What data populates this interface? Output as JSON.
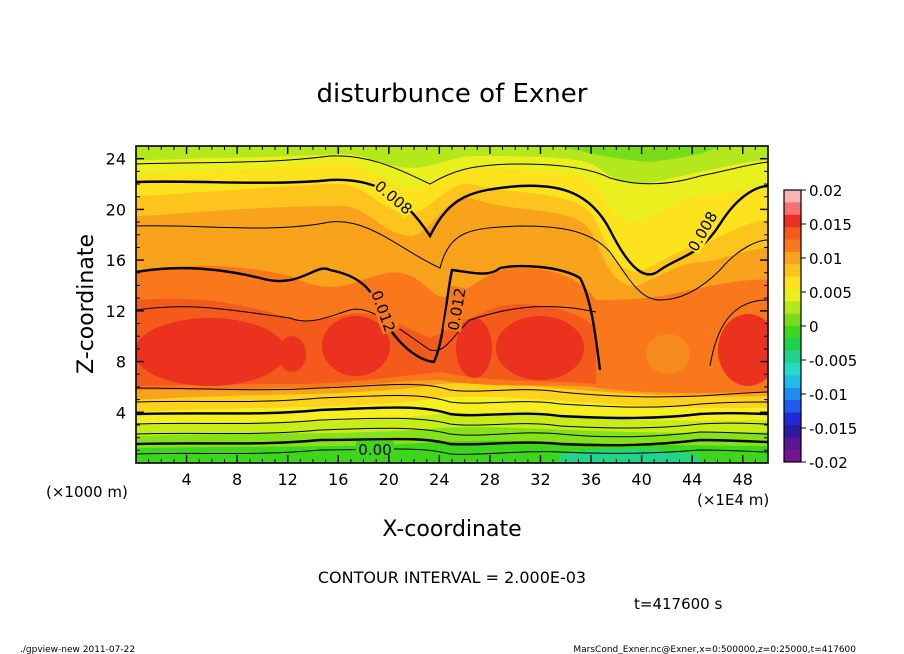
{
  "chart_data": {
    "type": "heatmap",
    "title": "disturbunce of Exner",
    "xlabel": "X-coordinate",
    "ylabel": "Z-coordinate",
    "x_unit_left": "(×1000 m)",
    "x_unit_right": "(×1E4 m)",
    "xlim": [
      0,
      50
    ],
    "ylim": [
      0,
      25
    ],
    "x_ticks": [
      4,
      8,
      12,
      16,
      20,
      24,
      28,
      32,
      36,
      40,
      44,
      48
    ],
    "y_ticks": [
      4,
      8,
      12,
      16,
      20,
      24
    ],
    "colorbar": {
      "ticks": [
        "0.02",
        "0.015",
        "0.01",
        "0.005",
        "0",
        "-0.005",
        "-0.01",
        "-0.015",
        "-0.02"
      ],
      "range": [
        -0.02,
        0.02
      ]
    },
    "contour_labels": [
      "0.008",
      "0.008",
      "0.012",
      "0.012",
      "0.00"
    ],
    "contour_interval_text": "CONTOUR INTERVAL = 2.000E-03",
    "time_text": "t=417600 s"
  },
  "footer": {
    "left": "./gpview-new   2011-07-22",
    "right": "MarsCond_Exner.nc@Exner,x=0:500000,z=0:25000,t=417600"
  }
}
